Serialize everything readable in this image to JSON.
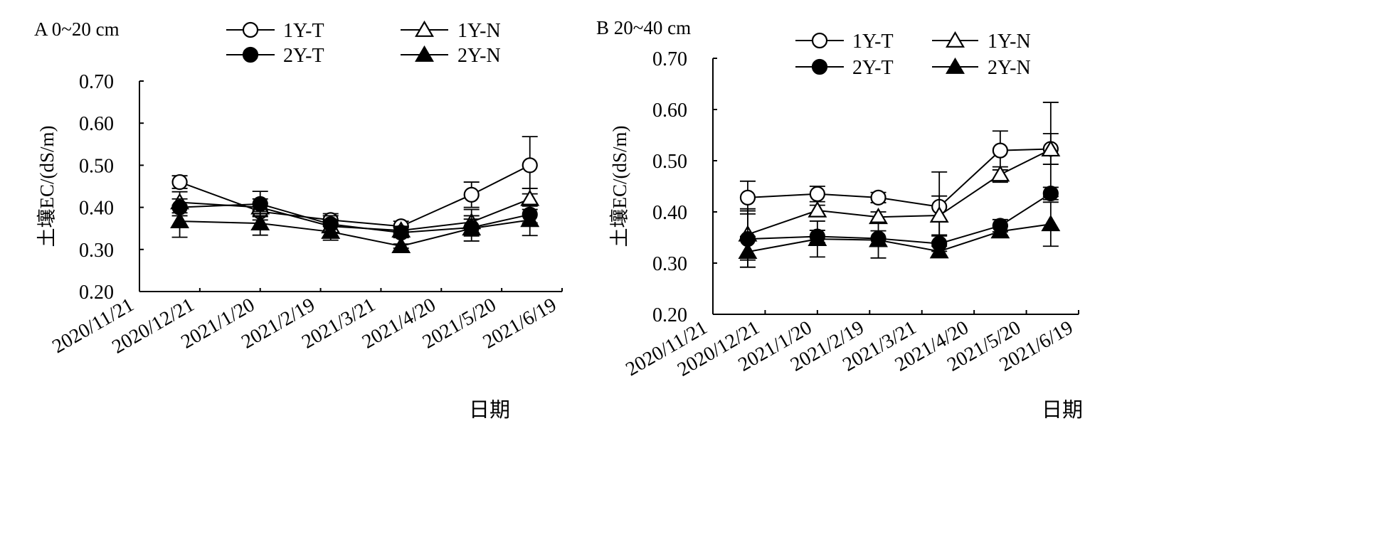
{
  "chart_data": [
    {
      "type": "line",
      "panel_label": "A 0~20 cm",
      "xlabel": "日期",
      "ylabel": "土壤EC/(dS/m)",
      "x_ticks": [
        "2020/11/21",
        "2020/12/21",
        "2021/1/20",
        "2021/2/19",
        "2021/3/21",
        "2021/4/20",
        "2021/5/20",
        "2021/6/19"
      ],
      "xlim": [
        "2020/11/21",
        "2021/6/19"
      ],
      "x": [
        "2020/12/11",
        "2021/1/20",
        "2021/2/24",
        "2021/3/31",
        "2021/5/5",
        "2021/6/3"
      ],
      "ylim": [
        0.2,
        0.7
      ],
      "y_ticks": [
        "0.20",
        "0.30",
        "0.40",
        "0.50",
        "0.60",
        "0.70"
      ],
      "legend_position": "top",
      "series": [
        {
          "name": "1Y-T",
          "marker": "circle-open",
          "values": [
            0.46,
            0.39,
            0.37,
            0.355,
            0.43,
            0.5
          ],
          "errors": [
            0.015,
            0.02,
            0.015,
            0.012,
            0.03,
            0.068
          ]
        },
        {
          "name": "1Y-N",
          "marker": "triangle-open",
          "values": [
            0.412,
            0.4,
            0.355,
            0.345,
            0.365,
            0.42
          ],
          "errors": [
            0.025,
            0.02,
            0.015,
            0.01,
            0.03,
            0.025
          ]
        },
        {
          "name": "2Y-T",
          "marker": "circle-filled",
          "values": [
            0.4,
            0.408,
            0.36,
            0.34,
            0.352,
            0.383
          ],
          "errors": [
            0.02,
            0.03,
            0.02,
            0.012,
            0.02,
            0.02
          ]
        },
        {
          "name": "2Y-N",
          "marker": "triangle-filled",
          "values": [
            0.367,
            0.362,
            0.342,
            0.308,
            0.35,
            0.37
          ],
          "errors": [
            0.038,
            0.028,
            0.02,
            0.005,
            0.03,
            0.037
          ]
        }
      ]
    },
    {
      "type": "line",
      "panel_label": "B 20~40 cm",
      "xlabel": "日期",
      "ylabel": "土壤EC/(dS/m)",
      "x_ticks": [
        "2020/11/21",
        "2020/12/21",
        "2021/1/20",
        "2021/2/19",
        "2021/3/21",
        "2021/4/20",
        "2021/5/20",
        "2021/6/19"
      ],
      "xlim": [
        "2020/11/21",
        "2021/6/19"
      ],
      "x": [
        "2020/12/11",
        "2021/1/20",
        "2021/2/24",
        "2021/3/31",
        "2021/5/5",
        "2021/6/3"
      ],
      "ylim": [
        0.2,
        0.7
      ],
      "y_ticks": [
        "0.20",
        "0.30",
        "0.40",
        "0.50",
        "0.60",
        "0.70"
      ],
      "legend_position": "top",
      "series": [
        {
          "name": "1Y-T",
          "marker": "circle-open",
          "values": [
            0.428,
            0.435,
            0.428,
            0.41,
            0.52,
            0.523
          ],
          "errors": [
            0.032,
            0.015,
            0.01,
            0.068,
            0.038,
            0.03
          ]
        },
        {
          "name": "1Y-N",
          "marker": "triangle-open",
          "values": [
            0.356,
            0.403,
            0.39,
            0.393,
            0.473,
            0.522
          ],
          "errors": [
            0.05,
            0.01,
            0.01,
            0.038,
            0.015,
            0.092
          ]
        },
        {
          "name": "2Y-T",
          "marker": "circle-filled",
          "values": [
            0.347,
            0.352,
            0.348,
            0.338,
            0.373,
            0.436
          ],
          "errors": [
            0.055,
            0.012,
            0.015,
            0.015,
            0.012,
            0.012
          ]
        },
        {
          "name": "2Y-N",
          "marker": "triangle-filled",
          "values": [
            0.322,
            0.347,
            0.345,
            0.323,
            0.362,
            0.376
          ],
          "errors": [
            0.03,
            0.035,
            0.035,
            0.01,
            0.01,
            0.043
          ]
        }
      ]
    }
  ]
}
